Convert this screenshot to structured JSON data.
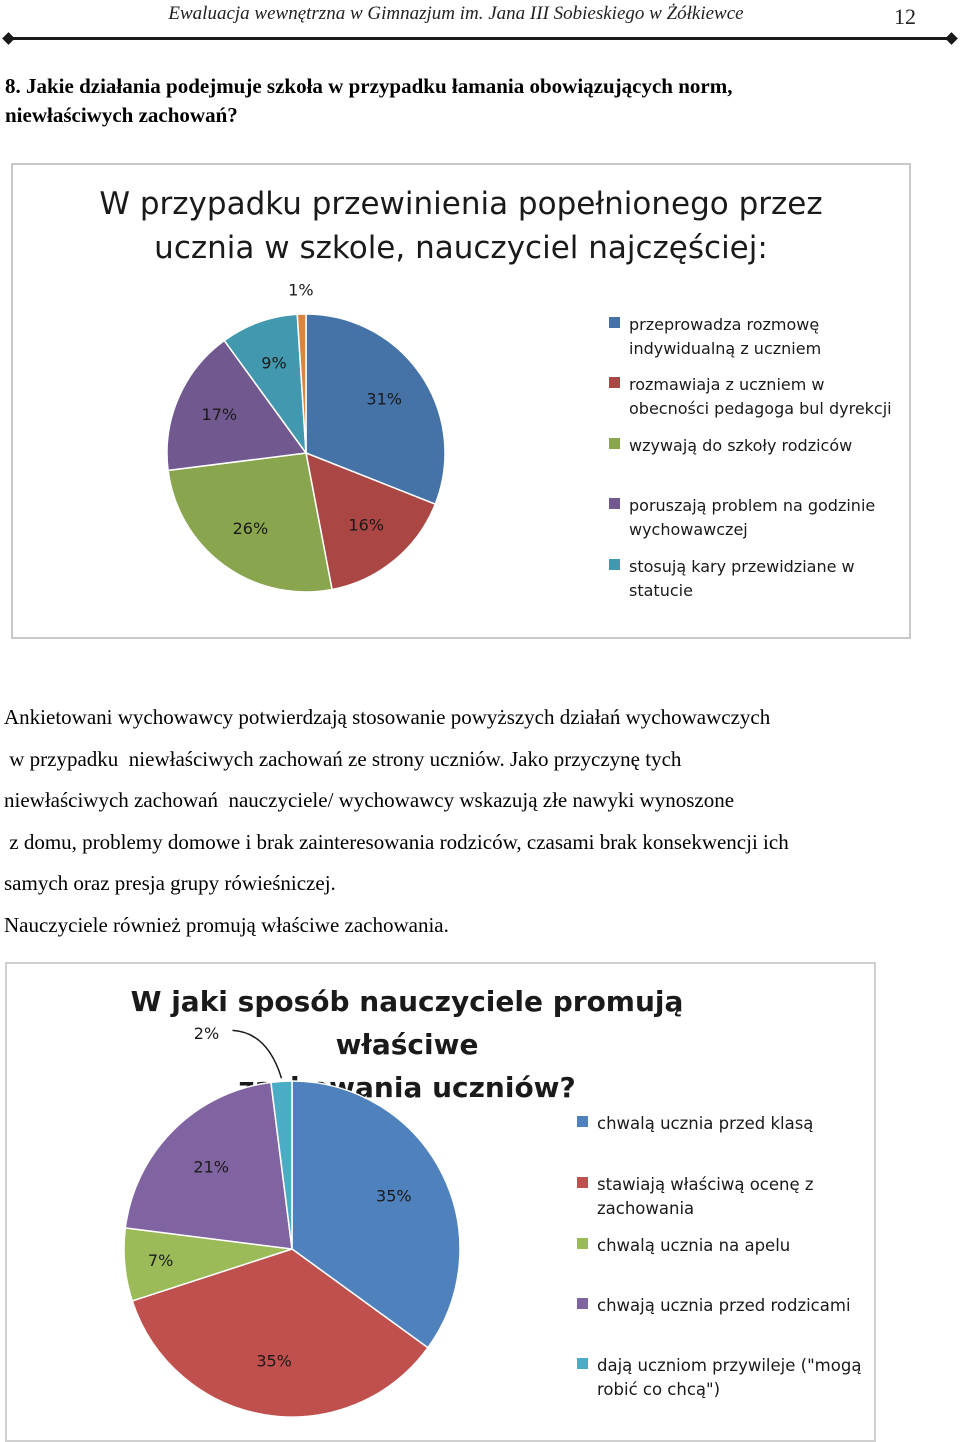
{
  "header": {
    "title": "Ewaluacja wewnętrzna w Gimnazjum im. Jana III Sobieskiego w Żółkiewce",
    "page_number": "12"
  },
  "question": {
    "line1": "8. Jakie działania podejmuje szkoła w przypadku łamania obowiązujących norm,",
    "line2": "niewłaściwych zachowań?"
  },
  "paragraph": {
    "lines": [
      "Ankietowani wychowawcy potwierdzają stosowanie powyższych działań wychowawczych",
      " w przypadku  niewłaściwych zachowań ze strony uczniów. Jako przyczynę tych",
      "niewłaściwych zachowań  nauczyciele/ wychowawcy wskazują złe nawyki wynoszone",
      " z domu, problemy domowe i brak zainteresowania rodziców, czasami brak konsekwencji ich",
      "samych oraz presja grupy rówieśniczej.",
      "Nauczyciele również promują właściwe zachowania."
    ]
  },
  "chart_data": [
    {
      "type": "pie",
      "title_line1": "W przypadku przewinienia popełnionego przez",
      "title_line2": "ucznia w szkole, nauczyciel najczęściej:",
      "legend_position": "right",
      "slices": [
        {
          "label": "przeprowadza rozmowę indywidualną z uczniem",
          "legend_lines": [
            "przeprowadza rozmowę",
            "indywidualną z uczniem"
          ],
          "value": 31,
          "value_label": "31%",
          "color": "#4572A7"
        },
        {
          "label": "rozmawiaja z uczniem w obecności pedagoga bul dyrekcji",
          "legend_lines": [
            "rozmawiaja z uczniem w",
            "obecności pedagoga bul dyrekcji"
          ],
          "value": 16,
          "value_label": "16%",
          "color": "#AA4643"
        },
        {
          "label": "wzywają do szkoły rodziców",
          "legend_lines": [
            "wzywają do szkoły rodziców"
          ],
          "value": 26,
          "value_label": "26%",
          "color": "#89A54E"
        },
        {
          "label": "poruszają problem na godzinie wychowawczej",
          "legend_lines": [
            "poruszają problem na godzinie",
            "wychowawczej"
          ],
          "value": 17,
          "value_label": "17%",
          "color": "#71588F"
        },
        {
          "label": "stosują kary przewidziane w statucie",
          "legend_lines": [
            "stosują kary przewidziane w",
            "statucie"
          ],
          "value": 9,
          "value_label": "9%",
          "color": "#4198AF"
        },
        {
          "label": "",
          "legend_lines": [],
          "value": 1,
          "value_label": "1%",
          "color": "#DB843D"
        }
      ]
    },
    {
      "type": "pie",
      "title_line1": "W jaki sposób nauczyciele promują właściwe",
      "title_line2": "zachowania uczniów?",
      "legend_position": "right",
      "slices": [
        {
          "label": "chwalą ucznia przed klasą",
          "legend_lines": [
            "chwalą ucznia przed klasą"
          ],
          "value": 35,
          "value_label": "35%",
          "color": "#4F81BD"
        },
        {
          "label": "stawiają właściwą ocenę z zachowania",
          "legend_lines": [
            "stawiają właściwą ocenę z",
            "zachowania"
          ],
          "value": 35,
          "value_label": "35%",
          "color": "#C0504D"
        },
        {
          "label": "chwalą ucznia na apelu",
          "legend_lines": [
            "chwalą ucznia na apelu"
          ],
          "value": 7,
          "value_label": "7%",
          "color": "#9BBB59"
        },
        {
          "label": "chwają ucznia przed rodzicami",
          "legend_lines": [
            "chwają ucznia przed rodzicami"
          ],
          "value": 21,
          "value_label": "21%",
          "color": "#8064A2"
        },
        {
          "label": "dają uczniom przywileje (\"mogą robić co chcą\")",
          "legend_lines": [
            "dają uczniom przywileje (\"mogą",
            "robić co chcą\")"
          ],
          "value": 2,
          "value_label": "2%",
          "color": "#4BACC6"
        }
      ]
    }
  ]
}
